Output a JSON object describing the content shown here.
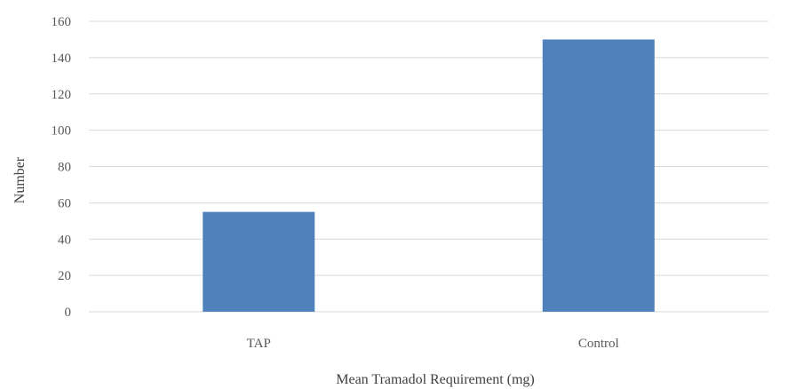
{
  "chart_data": {
    "type": "bar",
    "categories": [
      "TAP",
      "Control"
    ],
    "values": [
      55,
      150
    ],
    "title": "",
    "xlabel": "Mean Tramadol Requirement (mg)",
    "ylabel": "Number",
    "ylim": [
      0,
      160
    ],
    "yticks": [
      0,
      20,
      40,
      60,
      80,
      100,
      120,
      140,
      160
    ],
    "grid": true,
    "legend": "none",
    "bar_color": "#4F81BD",
    "grid_color": "#D9D9D9"
  }
}
